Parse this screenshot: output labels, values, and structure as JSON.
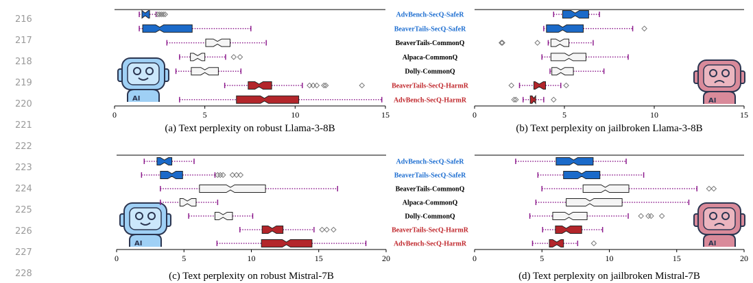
{
  "line_numbers": [
    "216",
    "217",
    "218",
    "219",
    "220",
    "221",
    "222",
    "223",
    "224",
    "225",
    "226",
    "227",
    "228"
  ],
  "icons": {
    "label": "AI"
  },
  "chart_data": [
    {
      "type": "box",
      "caption": "(a) Text perplexity on robust Llama-3-8B",
      "categories": [
        "AdvBench-SecQ-SafeR",
        "BeaverTails-SecQ-SafeR",
        "BeaverTails-CommonQ",
        "Alpaca-CommonQ",
        "Dolly-CommonQ",
        "BeaverTails-SecQ-HarmR",
        "AdvBench-SecQ-HarmR"
      ],
      "label_colors": [
        "#1f6fd1",
        "#1f6fd1",
        "#000000",
        "#000000",
        "#000000",
        "#c0282d",
        "#c0282d"
      ],
      "colors": [
        "#1b6ac9",
        "#1b6ac9",
        "#f5f5f5",
        "#f5f5f5",
        "#f5f5f5",
        "#b3262b",
        "#b3262b"
      ],
      "xlim": [
        0,
        15
      ],
      "xticks": [
        0,
        5,
        10,
        15
      ],
      "boxes": [
        {
          "whislo": 1.37,
          "q1": 1.52,
          "med": 1.7,
          "q3": 1.94,
          "whishi": 2.3,
          "fliers": [
            2.4,
            2.5,
            2.6,
            2.7,
            2.8
          ]
        },
        {
          "whislo": 1.37,
          "q1": 1.56,
          "med": 2.5,
          "q3": 4.3,
          "whishi": 7.55,
          "fliers": []
        },
        {
          "whislo": 2.9,
          "q1": 5.05,
          "med": 5.7,
          "q3": 6.4,
          "whishi": 8.4,
          "fliers": []
        },
        {
          "whislo": 3.6,
          "q1": 4.2,
          "med": 4.6,
          "q3": 5.0,
          "whishi": 6.15,
          "fliers": [
            6.6,
            6.95
          ]
        },
        {
          "whislo": 3.4,
          "q1": 4.25,
          "med": 5.0,
          "q3": 5.75,
          "whishi": 7.0,
          "fliers": []
        },
        {
          "whislo": 6.1,
          "q1": 7.4,
          "med": 8.0,
          "q3": 8.7,
          "whishi": 10.4,
          "fliers": [
            10.8,
            11.0,
            11.2,
            11.6,
            11.7,
            13.7
          ]
        },
        {
          "whislo": 3.6,
          "q1": 6.75,
          "med": 8.3,
          "q3": 10.2,
          "whishi": 14.8,
          "fliers": []
        }
      ]
    },
    {
      "type": "box",
      "caption": "(b) Text perplexity on jailbroken Llama-3-8B",
      "colors": [
        "#1b6ac9",
        "#1b6ac9",
        "#f5f5f5",
        "#f5f5f5",
        "#f5f5f5",
        "#b3262b",
        "#b3262b"
      ],
      "xlim": [
        0,
        15
      ],
      "xticks": [
        0,
        5,
        10,
        15
      ],
      "boxes": [
        {
          "whislo": 4.4,
          "q1": 4.9,
          "med": 5.6,
          "q3": 6.35,
          "whishi": 6.95,
          "fliers": []
        },
        {
          "whislo": 3.85,
          "q1": 4.0,
          "med": 4.9,
          "q3": 6.05,
          "whishi": 8.8,
          "fliers": [
            9.45
          ]
        },
        {
          "whislo": 4.1,
          "q1": 4.25,
          "med": 4.75,
          "q3": 5.25,
          "whishi": 6.6,
          "fliers": [
            1.5,
            1.55,
            3.5
          ]
        },
        {
          "whislo": 3.75,
          "q1": 4.25,
          "med": 5.25,
          "q3": 6.2,
          "whishi": 8.55,
          "fliers": []
        },
        {
          "whislo": 4.2,
          "q1": 4.3,
          "med": 4.8,
          "q3": 5.5,
          "whishi": 7.2,
          "fliers": []
        },
        {
          "whislo": 2.5,
          "q1": 3.3,
          "med": 3.6,
          "q3": 3.95,
          "whishi": 4.8,
          "fliers": [
            2.05,
            5.1
          ]
        },
        {
          "whislo": 2.7,
          "q1": 3.1,
          "med": 3.3,
          "q3": 3.4,
          "whishi": 3.85,
          "fliers": [
            2.2,
            2.3,
            4.4
          ]
        }
      ]
    },
    {
      "type": "box",
      "caption": "(c) Text perplexity on robust Mistral-7B",
      "categories": [
        "AdvBench-SecQ-SafeR",
        "BeaverTails-SecQ-SafeR",
        "BeaverTails-CommonQ",
        "Alpaca-CommonQ",
        "Dolly-CommonQ",
        "BeaverTails-SecQ-HarmR",
        "AdvBench-SecQ-HarmR"
      ],
      "label_colors": [
        "#1f6fd1",
        "#1f6fd1",
        "#000000",
        "#000000",
        "#000000",
        "#c0282d",
        "#c0282d"
      ],
      "colors": [
        "#1b6ac9",
        "#1b6ac9",
        "#f5f5f5",
        "#f5f5f5",
        "#f5f5f5",
        "#b3262b",
        "#b3262b"
      ],
      "xlim": [
        0,
        20
      ],
      "xticks": [
        0,
        5,
        10,
        15,
        20
      ],
      "boxes": [
        {
          "whislo": 2.05,
          "q1": 3.0,
          "med": 3.55,
          "q3": 4.1,
          "whishi": 5.75,
          "fliers": []
        },
        {
          "whislo": 1.85,
          "q1": 3.25,
          "med": 4.1,
          "q3": 4.9,
          "whishi": 7.3,
          "fliers": [
            7.5,
            7.7,
            7.9,
            8.6,
            8.9,
            9.2
          ]
        },
        {
          "whislo": 3.25,
          "q1": 6.15,
          "med": 8.45,
          "q3": 11.05,
          "whishi": 16.4,
          "fliers": []
        },
        {
          "whislo": 3.25,
          "q1": 4.7,
          "med": 5.25,
          "q3": 5.9,
          "whishi": 7.5,
          "fliers": []
        },
        {
          "whislo": 5.35,
          "q1": 7.3,
          "med": 7.9,
          "q3": 8.6,
          "whishi": 10.1,
          "fliers": []
        },
        {
          "whislo": 9.15,
          "q1": 10.8,
          "med": 11.55,
          "q3": 12.35,
          "whishi": 14.65,
          "fliers": [
            15.25,
            15.6,
            16.1
          ]
        },
        {
          "whislo": 7.45,
          "q1": 10.75,
          "med": 12.6,
          "q3": 14.5,
          "whishi": 18.5,
          "fliers": []
        }
      ]
    },
    {
      "type": "box",
      "caption": "(d) Text perplexity on jailbroken Mistral-7B",
      "colors": [
        "#1b6ac9",
        "#1b6ac9",
        "#f5f5f5",
        "#f5f5f5",
        "#f5f5f5",
        "#b3262b",
        "#b3262b"
      ],
      "xlim": [
        0,
        20
      ],
      "xticks": [
        0,
        5,
        10,
        15,
        20
      ],
      "boxes": [
        {
          "whislo": 3.05,
          "q1": 6.05,
          "med": 7.35,
          "q3": 8.8,
          "whishi": 11.25,
          "fliers": []
        },
        {
          "whislo": 4.7,
          "q1": 6.6,
          "med": 7.95,
          "q3": 9.3,
          "whishi": 12.55,
          "fliers": []
        },
        {
          "whislo": 5.0,
          "q1": 8.05,
          "med": 9.7,
          "q3": 11.45,
          "whishi": 16.5,
          "fliers": [
            17.4,
            17.75
          ]
        },
        {
          "whislo": 4.55,
          "q1": 6.8,
          "med": 8.55,
          "q3": 10.95,
          "whishi": 15.9,
          "fliers": []
        },
        {
          "whislo": 4.1,
          "q1": 5.8,
          "med": 7.0,
          "q3": 8.35,
          "whishi": 11.4,
          "fliers": [
            12.35,
            12.9,
            13.1,
            13.9
          ]
        },
        {
          "whislo": 5.05,
          "q1": 6.0,
          "med": 6.8,
          "q3": 7.95,
          "whishi": 9.5,
          "fliers": []
        },
        {
          "whislo": 4.3,
          "q1": 5.55,
          "med": 6.1,
          "q3": 6.6,
          "whishi": 7.65,
          "fliers": [
            8.85
          ]
        }
      ]
    }
  ]
}
